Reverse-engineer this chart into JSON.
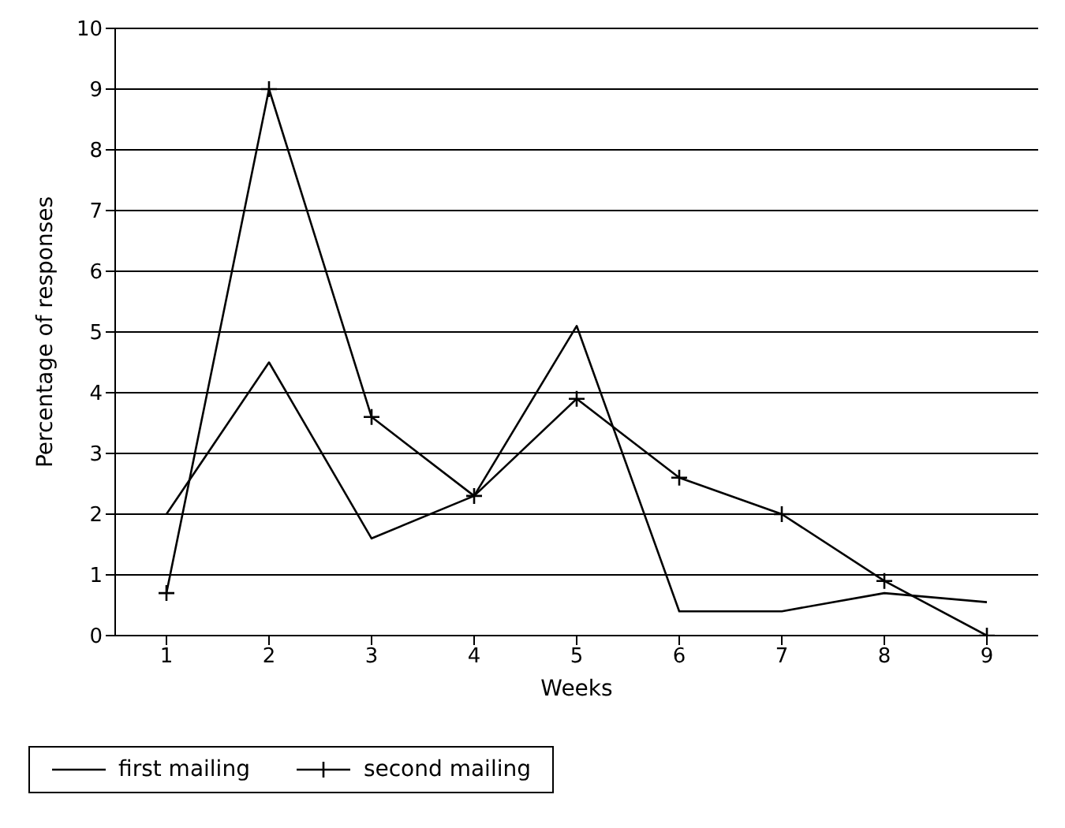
{
  "chart_data": {
    "type": "line",
    "xlabel": "Weeks",
    "ylabel": "Percentage of responses",
    "x": [
      1,
      2,
      3,
      4,
      5,
      6,
      7,
      8,
      9
    ],
    "series": [
      {
        "name": "first mailing",
        "color": "#000000",
        "marker": "none",
        "values": [
          2.0,
          4.5,
          1.6,
          2.3,
          5.1,
          0.4,
          0.4,
          0.7,
          0.55
        ]
      },
      {
        "name": "second mailing",
        "color": "#000000",
        "marker": "cross",
        "values": [
          0.7,
          9.0,
          3.6,
          2.3,
          3.9,
          2.6,
          2.0,
          0.9,
          0
        ]
      }
    ],
    "xlim": [
      0.5,
      9.5
    ],
    "xticks": [
      1,
      2,
      3,
      4,
      5,
      6,
      7,
      8,
      9
    ],
    "ylim": [
      0,
      10
    ],
    "yticks": [
      0,
      1,
      2,
      3,
      4,
      5,
      6,
      7,
      8,
      9,
      10
    ],
    "grid": "y",
    "legend": "bottom",
    "line_style": "solid"
  }
}
